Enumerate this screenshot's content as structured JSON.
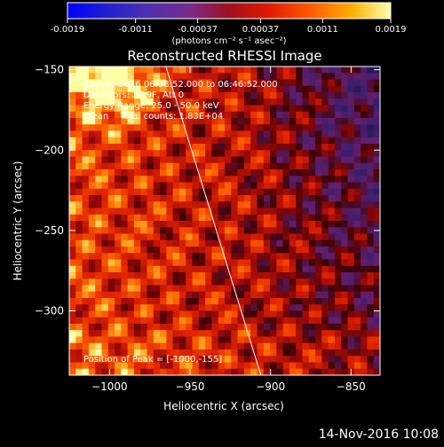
{
  "chart_data": {
    "type": "heatmap",
    "title": "Reconstructed RHESSI Image",
    "xlabel": "Heliocentric X (arcsec)",
    "ylabel": "Heliocentric Y (arcsec)",
    "xlim": [
      -1025,
      -832
    ],
    "ylim": [
      -340,
      -148
    ],
    "x_ticks": [
      -1000,
      -950,
      -900,
      -850
    ],
    "y_ticks": [
      -150,
      -200,
      -250,
      -300
    ],
    "colorbar": {
      "ticks": [
        "-0.0019",
        "-0.0011",
        "-0.00037",
        "0.00037",
        "0.0011",
        "0.0019"
      ],
      "unit_label": "(photons cm⁻² s⁻¹ asec⁻²)",
      "range": [
        -0.0019,
        0.0019
      ]
    },
    "annotations": [
      "12-Nov-2016 06:38:52.000 to 06:46:52.000",
      "Detectors: 3F 9F, Att 0",
      "Energy Range: 25.0 - 50.0 keV",
      "Clean    Total counts: 1.83E+04"
    ],
    "peak_label": "Position of Peak = [-1000,-155]",
    "peak": [
      -1000,
      -155
    ],
    "limb_line": [
      [
        -965,
        -148
      ],
      [
        -906,
        -340
      ]
    ]
  },
  "footer": {
    "date": "14-Nov-2016 10:08"
  },
  "colors": {
    "background": "#000000",
    "text": "#ffffff"
  }
}
